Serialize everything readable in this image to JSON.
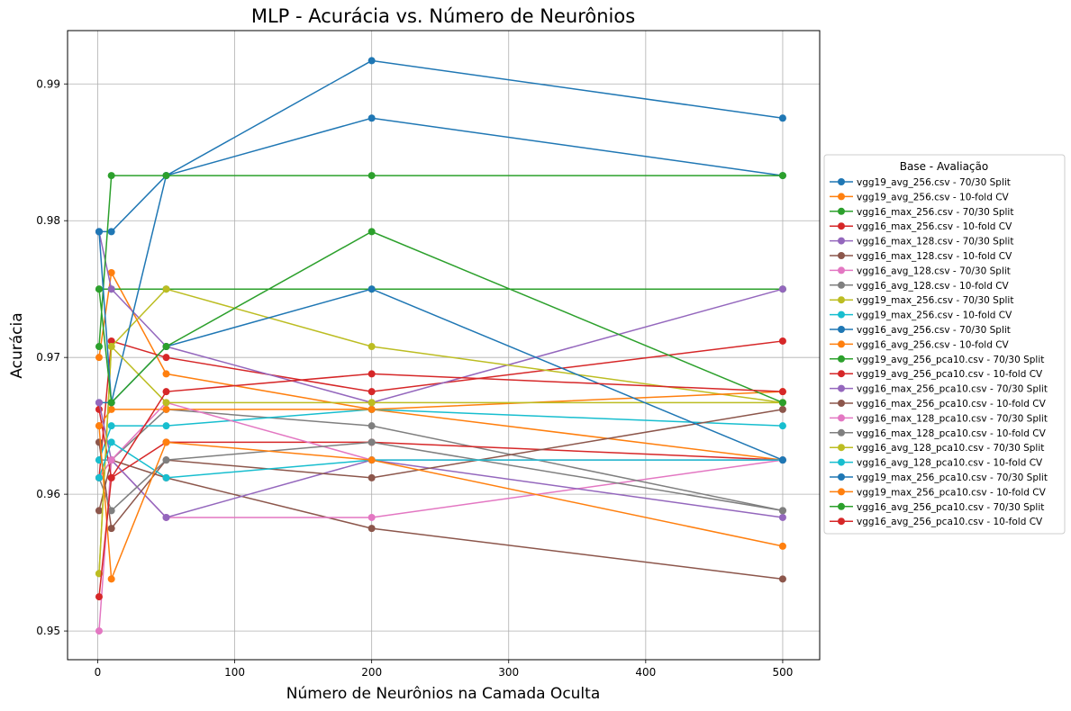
{
  "chart_data": {
    "type": "line",
    "title": "MLP - Acurácia vs. Número de Neurônios",
    "xlabel": "Número de Neurônios na Camada Oculta",
    "ylabel": "Acurácia",
    "xlim": [
      -22,
      527
    ],
    "ylim": [
      0.9479,
      0.9939
    ],
    "x": [
      1,
      10,
      50,
      200,
      500
    ],
    "xticks": [
      0,
      100,
      200,
      300,
      400,
      500
    ],
    "yticks": [
      0.95,
      0.96,
      0.97,
      0.98,
      0.99
    ],
    "grid": true,
    "legend_title": "Base - Avaliação",
    "legend_position": "center-right-outside",
    "series": [
      {
        "name": "vgg19_avg_256.csv - 70/30 Split",
        "color": "#1f77b4",
        "values": [
          0.9792,
          0.9792,
          0.9833,
          0.9875,
          0.9833
        ]
      },
      {
        "name": "vgg19_avg_256.csv - 10-fold CV",
        "color": "#ff7f0e",
        "values": [
          0.97,
          0.9762,
          0.9688,
          0.9662,
          0.9625
        ]
      },
      {
        "name": "vgg16_max_256.csv - 70/30 Split",
        "color": "#2ca02c",
        "values": [
          0.975,
          0.975,
          0.975,
          0.975,
          0.975
        ]
      },
      {
        "name": "vgg16_max_256.csv - 10-fold CV",
        "color": "#d62728",
        "values": [
          0.9612,
          0.9712,
          0.97,
          0.9675,
          0.9712
        ]
      },
      {
        "name": "vgg16_max_128.csv - 70/30 Split",
        "color": "#9467bd",
        "values": [
          0.9792,
          0.975,
          0.9708,
          0.9667,
          0.975
        ]
      },
      {
        "name": "vgg16_max_128.csv - 10-fold CV",
        "color": "#8c564b",
        "values": [
          0.9588,
          0.9625,
          0.9612,
          0.9575,
          0.9538
        ]
      },
      {
        "name": "vgg16_avg_128.csv - 70/30 Split",
        "color": "#e377c2",
        "values": [
          0.95,
          0.9625,
          0.9583,
          0.9583,
          0.9625
        ]
      },
      {
        "name": "vgg16_avg_128.csv - 10-fold CV",
        "color": "#7f7f7f",
        "values": [
          0.9625,
          0.9625,
          0.9662,
          0.965,
          0.9588
        ]
      },
      {
        "name": "vgg19_max_256.csv - 70/30 Split",
        "color": "#bcbd22",
        "values": [
          0.9542,
          0.9708,
          0.975,
          0.9708,
          0.9667
        ]
      },
      {
        "name": "vgg19_max_256.csv - 10-fold CV",
        "color": "#17becf",
        "values": [
          0.9625,
          0.965,
          0.965,
          0.9662,
          0.965
        ]
      },
      {
        "name": "vgg16_avg_256.csv - 70/30 Split",
        "color": "#1f77b4",
        "values": [
          0.9667,
          0.9667,
          0.9833,
          0.9917,
          0.9875
        ]
      },
      {
        "name": "vgg16_avg_256.csv - 10-fold CV",
        "color": "#ff7f0e",
        "values": [
          0.965,
          0.9662,
          0.9662,
          0.9662,
          0.9675
        ]
      },
      {
        "name": "vgg19_avg_256_pca10.csv - 70/30 Split",
        "color": "#2ca02c",
        "values": [
          0.9708,
          0.9833,
          0.9833,
          0.9833,
          0.9833
        ]
      },
      {
        "name": "vgg19_avg_256_pca10.csv - 10-fold CV",
        "color": "#d62728",
        "values": [
          0.9662,
          0.9612,
          0.9638,
          0.9638,
          0.9625
        ]
      },
      {
        "name": "vgg16_max_256_pca10.csv - 70/30 Split",
        "color": "#9467bd",
        "values": [
          0.9667,
          0.9625,
          0.9583,
          0.9625,
          0.9583
        ]
      },
      {
        "name": "vgg16_max_256_pca10.csv - 10-fold CV",
        "color": "#8c564b",
        "values": [
          0.9638,
          0.9575,
          0.9625,
          0.9612,
          0.9662
        ]
      },
      {
        "name": "vgg16_max_128_pca10.csv - 70/30 Split",
        "color": "#e377c2",
        "values": [
          0.9612,
          0.9625,
          0.9667,
          0.9625,
          0.9625
        ]
      },
      {
        "name": "vgg16_max_128_pca10.csv - 10-fold CV",
        "color": "#7f7f7f",
        "values": [
          0.9612,
          0.9588,
          0.9625,
          0.9638,
          0.9588
        ]
      },
      {
        "name": "vgg16_avg_128_pca10.csv - 70/30 Split",
        "color": "#bcbd22",
        "values": [
          0.9542,
          0.9708,
          0.9667,
          0.9667,
          0.9667
        ]
      },
      {
        "name": "vgg16_avg_128_pca10.csv - 10-fold CV",
        "color": "#17becf",
        "values": [
          0.9612,
          0.9638,
          0.9612,
          0.9625,
          0.9625
        ]
      },
      {
        "name": "vgg19_max_256_pca10.csv - 70/30 Split",
        "color": "#1f77b4",
        "values": [
          0.9792,
          0.9667,
          0.9708,
          0.975,
          0.9625
        ]
      },
      {
        "name": "vgg19_max_256_pca10.csv - 10-fold CV",
        "color": "#ff7f0e",
        "values": [
          0.965,
          0.9538,
          0.9638,
          0.9625,
          0.9562
        ]
      },
      {
        "name": "vgg16_avg_256_pca10.csv - 70/30 Split",
        "color": "#2ca02c",
        "values": [
          0.975,
          0.9667,
          0.9708,
          0.9792,
          0.9667
        ]
      },
      {
        "name": "vgg16_avg_256_pca10.csv - 10-fold CV",
        "color": "#d62728",
        "values": [
          0.9525,
          0.9612,
          0.9675,
          0.9688,
          0.9675
        ]
      }
    ]
  }
}
